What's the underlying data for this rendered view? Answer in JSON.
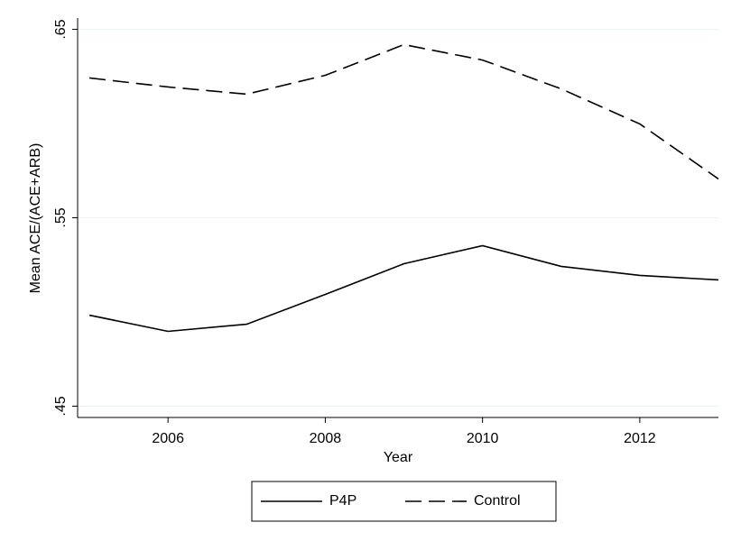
{
  "chart_data": {
    "type": "line",
    "x_label": "Year",
    "y_label": "Mean ACE/(ACE+ARB)",
    "x": [
      2005,
      2006,
      2007,
      2008,
      2009,
      2010,
      2011,
      2012,
      2013
    ],
    "series": [
      {
        "name": "P4P",
        "color": "#000000",
        "line_style": "solid",
        "values": [
          0.4983,
          0.4897,
          0.4935,
          0.5093,
          0.5256,
          0.5352,
          0.5242,
          0.5194,
          0.517
        ]
      },
      {
        "name": "Control",
        "color": "#000000",
        "line_style": "dashed",
        "values": [
          0.6242,
          0.6194,
          0.6156,
          0.6256,
          0.6419,
          0.6337,
          0.6184,
          0.5998,
          0.5706
        ]
      }
    ],
    "xlim": [
      2004.85,
      2013
    ],
    "xticks": [
      2006,
      2008,
      2010,
      2012
    ],
    "ylim": [
      0.444,
      0.656
    ],
    "yticks": [
      {
        "value": 0.45,
        "label": ".45"
      },
      {
        "value": 0.55,
        "label": ".55"
      },
      {
        "value": 0.65,
        "label": ".65"
      }
    ],
    "grid": true,
    "legend": "bottom"
  }
}
